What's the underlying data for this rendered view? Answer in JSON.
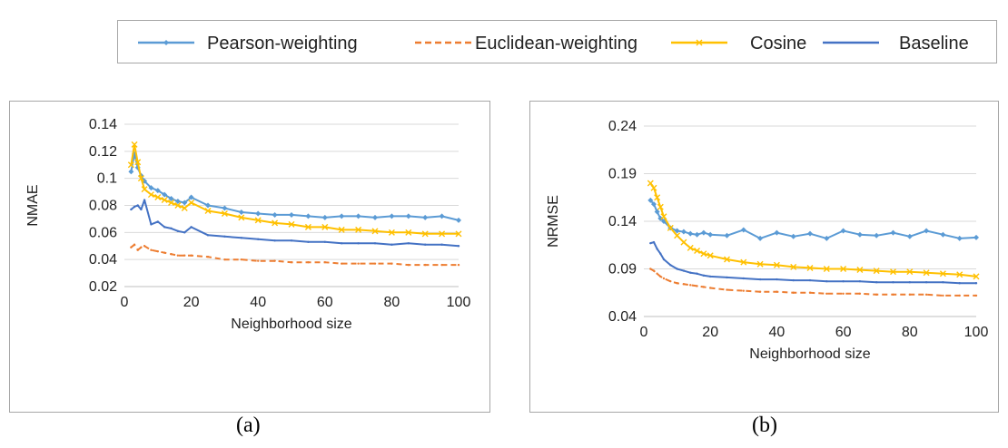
{
  "legend": {
    "items": [
      {
        "label": "Pearson-weighting",
        "color": "#5b9bd5",
        "style": "line-diamond"
      },
      {
        "label": "Euclidean-weighting",
        "color": "#ed7d31",
        "style": "dashed"
      },
      {
        "label": "Cosine",
        "color": "#ffc000",
        "style": "line-x"
      },
      {
        "label": "Baseline",
        "color": "#4472c4",
        "style": "solid"
      }
    ]
  },
  "captions": {
    "a": "(a)",
    "b": "(b)"
  },
  "chart_data": [
    {
      "id": "a",
      "type": "line",
      "title": "",
      "xlabel": "Neighborhood size",
      "ylabel": "NMAE",
      "xlim": [
        0,
        100
      ],
      "ylim": [
        0.02,
        0.14
      ],
      "xticks": [
        "0",
        "20",
        "40",
        "60",
        "80",
        "100"
      ],
      "yticks": [
        "0.02",
        "0.04",
        "0.06",
        "0.08",
        "0.1",
        "0.12",
        "0.14"
      ],
      "grid": "horizontal",
      "x": [
        2,
        3,
        4,
        5,
        6,
        8,
        10,
        12,
        14,
        16,
        18,
        20,
        25,
        30,
        35,
        40,
        45,
        50,
        55,
        60,
        65,
        70,
        75,
        80,
        85,
        90,
        95,
        100
      ],
      "series": [
        {
          "name": "Pearson-weighting",
          "color": "#5b9bd5",
          "values": [
            0.105,
            0.118,
            0.108,
            0.102,
            0.098,
            0.093,
            0.091,
            0.088,
            0.085,
            0.083,
            0.082,
            0.086,
            0.08,
            0.078,
            0.075,
            0.074,
            0.073,
            0.073,
            0.072,
            0.071,
            0.072,
            0.072,
            0.071,
            0.072,
            0.072,
            0.071,
            0.072,
            0.069
          ]
        },
        {
          "name": "Euclidean-weighting",
          "color": "#ed7d31",
          "values": [
            0.049,
            0.051,
            0.047,
            0.049,
            0.05,
            0.047,
            0.046,
            0.045,
            0.044,
            0.043,
            0.043,
            0.043,
            0.042,
            0.04,
            0.04,
            0.039,
            0.039,
            0.038,
            0.038,
            0.038,
            0.037,
            0.037,
            0.037,
            0.037,
            0.036,
            0.036,
            0.036,
            0.036
          ]
        },
        {
          "name": "Cosine",
          "color": "#ffc000",
          "values": [
            0.11,
            0.125,
            0.112,
            0.1,
            0.092,
            0.088,
            0.086,
            0.084,
            0.082,
            0.08,
            0.078,
            0.082,
            0.076,
            0.074,
            0.071,
            0.069,
            0.067,
            0.066,
            0.064,
            0.064,
            0.062,
            0.062,
            0.061,
            0.06,
            0.06,
            0.059,
            0.059,
            0.059
          ]
        },
        {
          "name": "Baseline",
          "color": "#4472c4",
          "values": [
            0.077,
            0.079,
            0.08,
            0.077,
            0.084,
            0.066,
            0.068,
            0.064,
            0.063,
            0.061,
            0.06,
            0.064,
            0.058,
            0.057,
            0.056,
            0.055,
            0.054,
            0.054,
            0.053,
            0.053,
            0.052,
            0.052,
            0.052,
            0.051,
            0.052,
            0.051,
            0.051,
            0.05
          ]
        }
      ]
    },
    {
      "id": "b",
      "type": "line",
      "title": "",
      "xlabel": "Neighborhood size",
      "ylabel": "NRMSE",
      "xlim": [
        0,
        100
      ],
      "ylim": [
        0.04,
        0.24
      ],
      "xticks": [
        "0",
        "20",
        "40",
        "60",
        "80",
        "100"
      ],
      "yticks": [
        "0.04",
        "0.09",
        "0.14",
        "0.19",
        "0.24"
      ],
      "grid": "horizontal",
      "x": [
        2,
        3,
        4,
        5,
        6,
        8,
        10,
        12,
        14,
        16,
        18,
        20,
        25,
        30,
        35,
        40,
        45,
        50,
        55,
        60,
        65,
        70,
        75,
        80,
        85,
        90,
        95,
        100
      ],
      "series": [
        {
          "name": "Pearson-weighting",
          "color": "#5b9bd5",
          "values": [
            0.162,
            0.158,
            0.15,
            0.143,
            0.14,
            0.133,
            0.13,
            0.129,
            0.127,
            0.126,
            0.128,
            0.126,
            0.125,
            0.131,
            0.122,
            0.128,
            0.124,
            0.127,
            0.122,
            0.13,
            0.126,
            0.125,
            0.128,
            0.124,
            0.13,
            0.126,
            0.122,
            0.123
          ]
        },
        {
          "name": "Euclidean-weighting",
          "color": "#ed7d31",
          "values": [
            0.09,
            0.088,
            0.085,
            0.082,
            0.08,
            0.077,
            0.075,
            0.074,
            0.073,
            0.072,
            0.071,
            0.07,
            0.068,
            0.067,
            0.066,
            0.066,
            0.065,
            0.065,
            0.064,
            0.064,
            0.064,
            0.063,
            0.063,
            0.063,
            0.063,
            0.062,
            0.062,
            0.062
          ]
        },
        {
          "name": "Cosine",
          "color": "#ffc000",
          "values": [
            0.18,
            0.175,
            0.165,
            0.155,
            0.145,
            0.133,
            0.125,
            0.118,
            0.112,
            0.109,
            0.106,
            0.104,
            0.1,
            0.097,
            0.095,
            0.094,
            0.092,
            0.091,
            0.09,
            0.09,
            0.089,
            0.088,
            0.087,
            0.087,
            0.086,
            0.085,
            0.084,
            0.082
          ]
        },
        {
          "name": "Baseline",
          "color": "#4472c4",
          "values": [
            0.117,
            0.118,
            0.111,
            0.106,
            0.1,
            0.094,
            0.09,
            0.088,
            0.086,
            0.085,
            0.083,
            0.082,
            0.081,
            0.08,
            0.079,
            0.079,
            0.078,
            0.078,
            0.077,
            0.077,
            0.077,
            0.076,
            0.076,
            0.076,
            0.076,
            0.076,
            0.075,
            0.075
          ]
        }
      ]
    }
  ]
}
